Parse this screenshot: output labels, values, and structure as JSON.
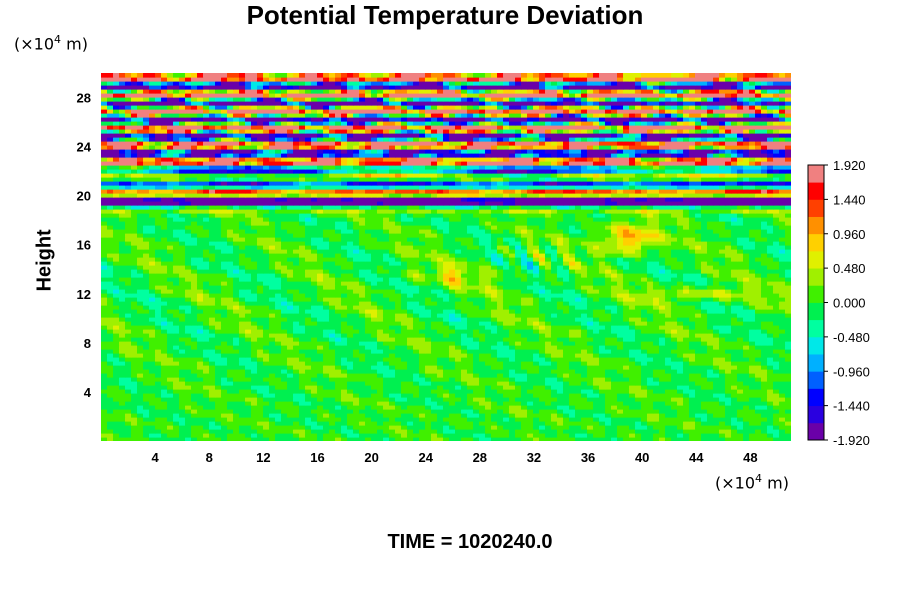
{
  "chart_data": {
    "type": "heatmap",
    "title": "Potential Temperature Deviation",
    "ylabel": "Height",
    "xunit_prefix": "(×10",
    "xunit_exp": "4",
    "xunit_suffix": " m)",
    "yunit_prefix": "(×10",
    "yunit_exp": "4",
    "yunit_suffix": " m)",
    "footer": "TIME = 1020240.0",
    "xlim": [
      0,
      51
    ],
    "ylim": [
      0,
      30
    ],
    "xticks": [
      4,
      8,
      12,
      16,
      20,
      24,
      28,
      32,
      36,
      40,
      44,
      48
    ],
    "yticks": [
      4,
      8,
      12,
      16,
      20,
      24,
      28
    ],
    "colorbar": {
      "range": [
        -1.92,
        1.92
      ],
      "tick_labels": [
        "1.920",
        "1.440",
        "0.960",
        "0.480",
        "0.000",
        "-0.480",
        "-0.960",
        "-1.440",
        "-1.920"
      ],
      "tick_values": [
        1.92,
        1.44,
        0.96,
        0.48,
        0.0,
        -0.48,
        -0.96,
        -1.44,
        -1.92
      ],
      "colors": [
        "#6a00a8",
        "#2a00e0",
        "#0000ff",
        "#0060ff",
        "#00b0ff",
        "#00e8e8",
        "#00ffa0",
        "#00f050",
        "#40f000",
        "#a0f000",
        "#e0f000",
        "#ffd000",
        "#ff9000",
        "#ff4000",
        "#ff0000",
        "#f08080"
      ]
    },
    "field_description": {
      "background_value": 0.0,
      "features": [
        {
          "kind": "band",
          "y_center": 20.5,
          "values": [
            -1.9,
            1.9,
            -1.9
          ]
        },
        {
          "kind": "band",
          "y_center": 22.3,
          "values": [
            1.9,
            -1.9
          ]
        },
        {
          "kind": "wave_layer",
          "y_range": [
            23,
            30
          ],
          "amplitude": 1.9
        },
        {
          "kind": "patch",
          "x": 39,
          "y": 16.5,
          "value": 1.0
        },
        {
          "kind": "patch",
          "x": 26,
          "y": 13.5,
          "value": 0.6
        },
        {
          "kind": "patch",
          "x": 44,
          "y": 12,
          "value": 0.5
        }
      ]
    }
  }
}
